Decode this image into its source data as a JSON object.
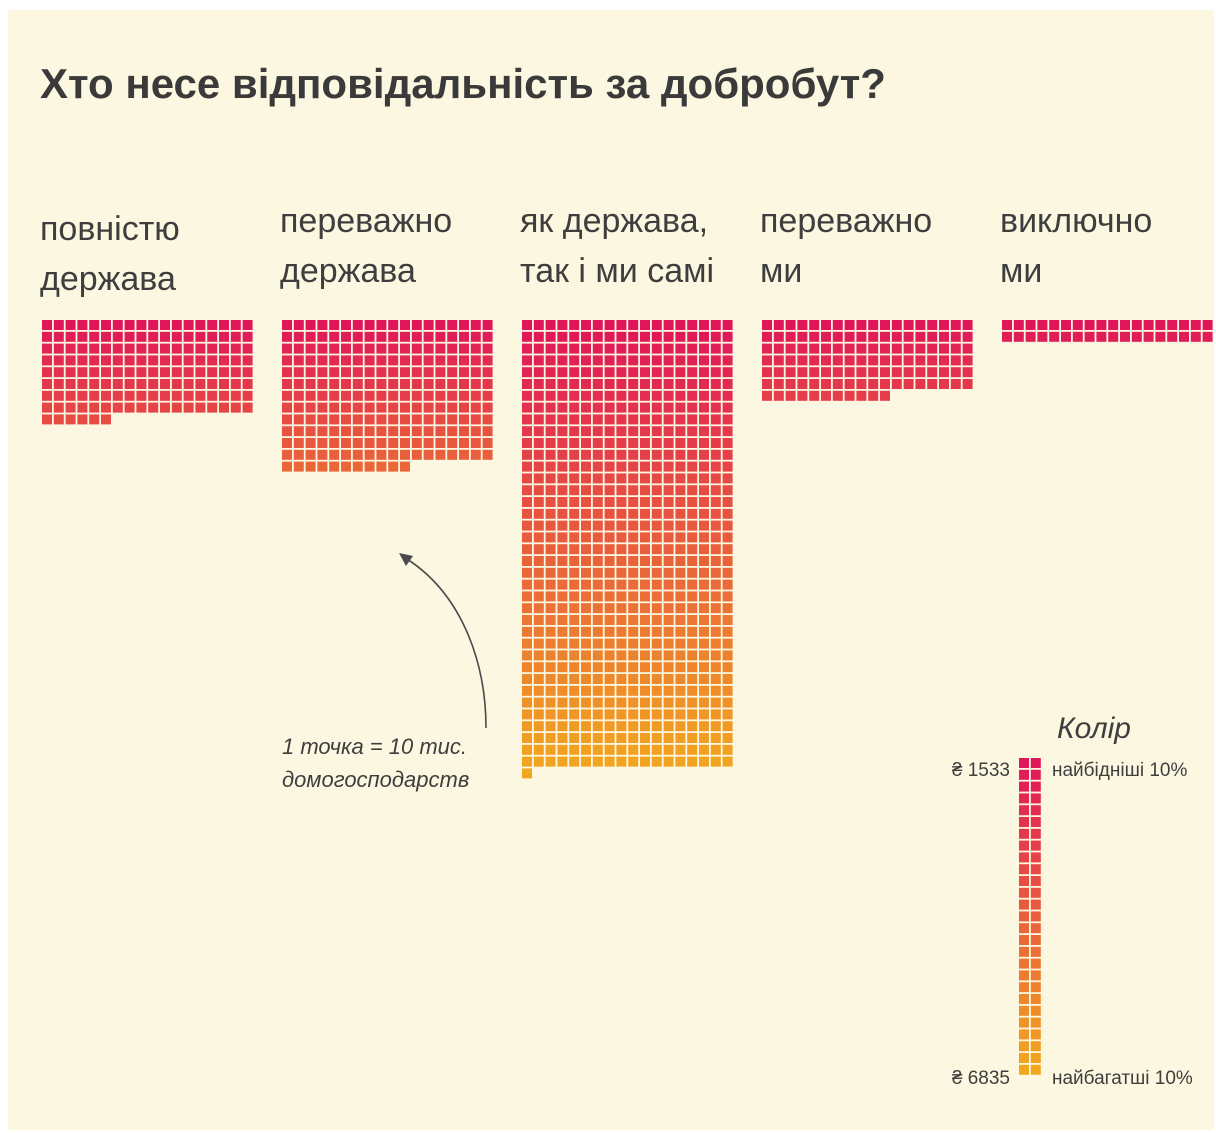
{
  "chart_data": {
    "type": "waffle",
    "title": "Хто несе відповідальність за добробут?",
    "categories": [
      {
        "label_lines": [
          "повністю",
          "держава"
        ],
        "dots": 150
      },
      {
        "label_lines": [
          "переважно",
          "держава"
        ],
        "dots": 227
      },
      {
        "label_lines": [
          "як держава,",
          "так і ми самі"
        ],
        "dots": 685
      },
      {
        "label_lines": [
          "переважно",
          "ми"
        ],
        "dots": 119
      },
      {
        "label_lines": [
          "виключно",
          "ми"
        ],
        "dots": 36
      }
    ],
    "columns_per_block": 18,
    "unit_note_lines": [
      "1 точка = 10 тис.",
      "домогосподарств"
    ],
    "legend": {
      "title": "Колір",
      "top_value": "₴ 1533",
      "top_label": "найбідніші 10%",
      "bottom_value": "₴ 6835",
      "bottom_label": "найбагатші 10%"
    },
    "color_scale": [
      "#e0165a",
      "#f2a81e"
    ]
  }
}
